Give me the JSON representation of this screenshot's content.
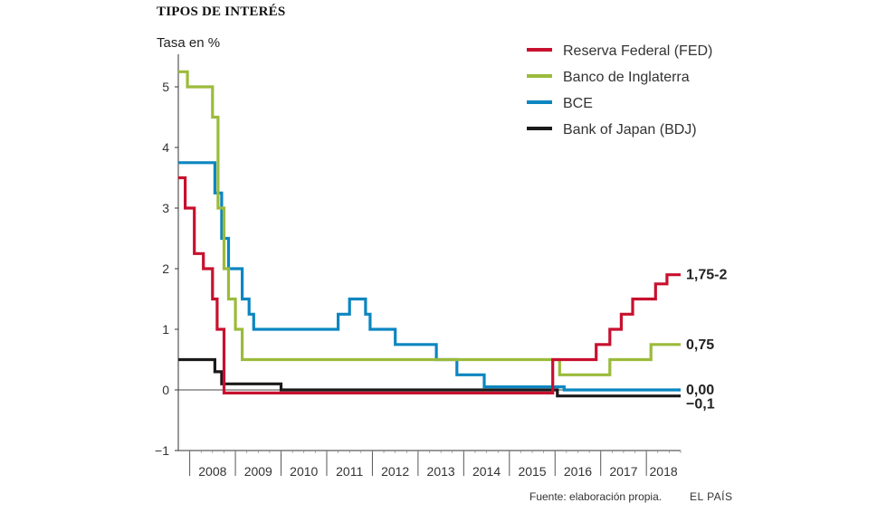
{
  "header": {
    "title": "TIPOS DE INTERÉS"
  },
  "footer": {
    "source": "Fuente: elaboración propia.",
    "brand": "EL PAÍS"
  },
  "chart_data": {
    "type": "line",
    "title": "TIPOS DE INTERÉS",
    "ylabel": "Tasa en %",
    "xlabel": "",
    "ylim": [
      -1,
      5.5
    ],
    "xlim": [
      2007.75,
      2018.75
    ],
    "yticks": [
      -1,
      0,
      1,
      2,
      3,
      4,
      5
    ],
    "ytick_labels": [
      "−1",
      "0",
      "1",
      "2",
      "3",
      "4",
      "5"
    ],
    "xtick_labels": [
      "2008",
      "2009",
      "2010",
      "2011",
      "2012",
      "2013",
      "2014",
      "2015",
      "2016",
      "2017",
      "2018"
    ],
    "grid": false,
    "legend": "top-right",
    "series": [
      {
        "name": "Reserva Federal (FED)",
        "color": "#c8102e",
        "end_label": "1,75-2",
        "points": [
          [
            2007.75,
            3.5
          ],
          [
            2007.9,
            3.5
          ],
          [
            2007.9,
            3.0
          ],
          [
            2008.1,
            3.0
          ],
          [
            2008.1,
            2.25
          ],
          [
            2008.3,
            2.25
          ],
          [
            2008.3,
            2.0
          ],
          [
            2008.5,
            2.0
          ],
          [
            2008.5,
            1.5
          ],
          [
            2008.6,
            1.5
          ],
          [
            2008.6,
            1.0
          ],
          [
            2008.75,
            1.0
          ],
          [
            2008.75,
            -0.05
          ],
          [
            2015.95,
            -0.05
          ],
          [
            2015.95,
            0.5
          ],
          [
            2016.9,
            0.5
          ],
          [
            2016.9,
            0.75
          ],
          [
            2017.2,
            0.75
          ],
          [
            2017.2,
            1.0
          ],
          [
            2017.45,
            1.0
          ],
          [
            2017.45,
            1.25
          ],
          [
            2017.7,
            1.25
          ],
          [
            2017.7,
            1.5
          ],
          [
            2018.2,
            1.5
          ],
          [
            2018.2,
            1.75
          ],
          [
            2018.45,
            1.75
          ],
          [
            2018.45,
            1.9
          ],
          [
            2018.75,
            1.9
          ]
        ]
      },
      {
        "name": "Banco de Inglaterra",
        "color": "#9bbb3b",
        "end_label": "0,75",
        "points": [
          [
            2007.75,
            5.25
          ],
          [
            2007.95,
            5.25
          ],
          [
            2007.95,
            5.0
          ],
          [
            2008.5,
            5.0
          ],
          [
            2008.5,
            4.5
          ],
          [
            2008.62,
            4.5
          ],
          [
            2008.62,
            3.0
          ],
          [
            2008.75,
            3.0
          ],
          [
            2008.75,
            2.0
          ],
          [
            2008.85,
            2.0
          ],
          [
            2008.85,
            1.5
          ],
          [
            2009.0,
            1.5
          ],
          [
            2009.0,
            1.0
          ],
          [
            2009.15,
            1.0
          ],
          [
            2009.15,
            0.5
          ],
          [
            2016.1,
            0.5
          ],
          [
            2016.1,
            0.25
          ],
          [
            2017.2,
            0.25
          ],
          [
            2017.2,
            0.5
          ],
          [
            2018.1,
            0.5
          ],
          [
            2018.1,
            0.75
          ],
          [
            2018.75,
            0.75
          ]
        ]
      },
      {
        "name": "BCE",
        "color": "#0b86c0",
        "end_label": "0,00",
        "points": [
          [
            2007.75,
            3.75
          ],
          [
            2008.55,
            3.75
          ],
          [
            2008.55,
            3.25
          ],
          [
            2008.7,
            3.25
          ],
          [
            2008.7,
            2.5
          ],
          [
            2008.85,
            2.5
          ],
          [
            2008.85,
            2.0
          ],
          [
            2009.15,
            2.0
          ],
          [
            2009.15,
            1.5
          ],
          [
            2009.3,
            1.5
          ],
          [
            2009.3,
            1.25
          ],
          [
            2009.4,
            1.25
          ],
          [
            2009.4,
            1.0
          ],
          [
            2011.25,
            1.0
          ],
          [
            2011.25,
            1.25
          ],
          [
            2011.5,
            1.25
          ],
          [
            2011.5,
            1.5
          ],
          [
            2011.85,
            1.5
          ],
          [
            2011.85,
            1.25
          ],
          [
            2011.95,
            1.25
          ],
          [
            2011.95,
            1.0
          ],
          [
            2012.5,
            1.0
          ],
          [
            2012.5,
            0.75
          ],
          [
            2013.4,
            0.75
          ],
          [
            2013.4,
            0.5
          ],
          [
            2013.85,
            0.5
          ],
          [
            2013.85,
            0.25
          ],
          [
            2014.45,
            0.25
          ],
          [
            2014.45,
            0.05
          ],
          [
            2015.8,
            0.05
          ],
          [
            2015.8,
            0.05
          ],
          [
            2016.2,
            0.05
          ],
          [
            2016.2,
            0.0
          ],
          [
            2018.75,
            0.0
          ]
        ]
      },
      {
        "name": "Bank of Japan (BDJ)",
        "color": "#1a1a1a",
        "end_label": "−0,1",
        "points": [
          [
            2007.75,
            0.5
          ],
          [
            2008.55,
            0.5
          ],
          [
            2008.55,
            0.3
          ],
          [
            2008.7,
            0.3
          ],
          [
            2008.7,
            0.1
          ],
          [
            2010.0,
            0.1
          ],
          [
            2010.0,
            0.0
          ],
          [
            2015.9,
            0.0
          ],
          [
            2015.9,
            0.0
          ],
          [
            2016.05,
            0.0
          ],
          [
            2016.05,
            -0.1
          ],
          [
            2018.75,
            -0.1
          ]
        ]
      }
    ]
  }
}
